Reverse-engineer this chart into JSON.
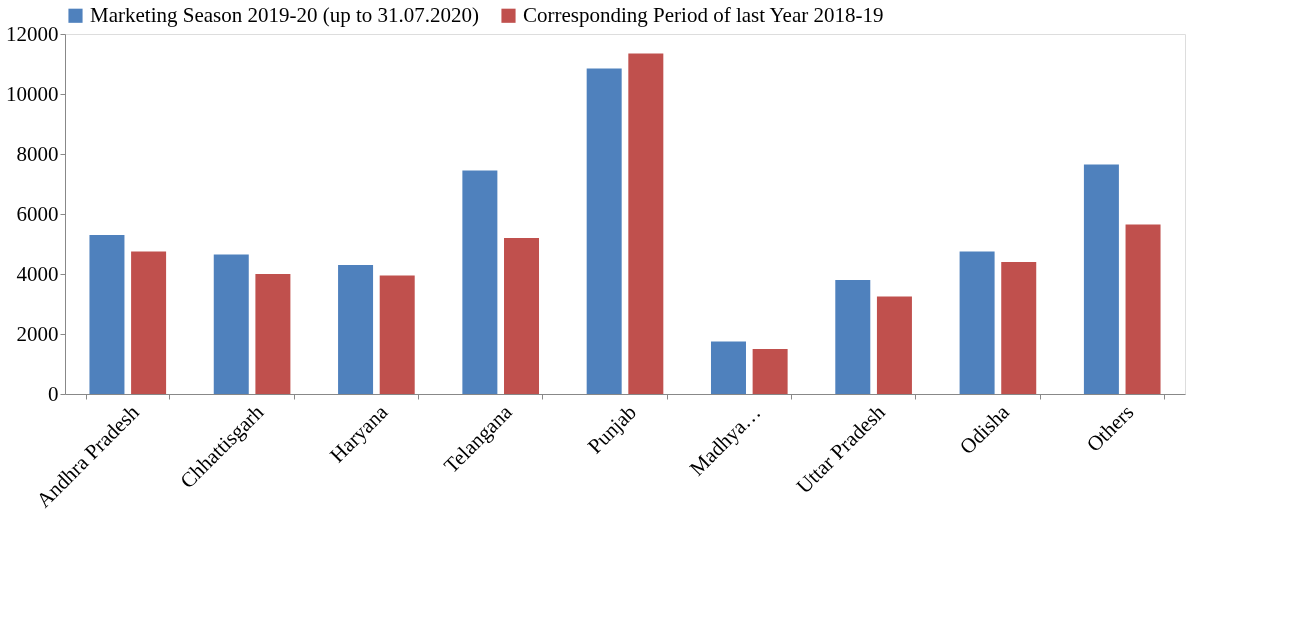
{
  "chart_data": {
    "type": "bar",
    "categories": [
      "Andhra Pradesh",
      "Chhattisgarh",
      "Haryana",
      "Telangana",
      "Punjab",
      "Madhya…",
      "Uttar Pradesh",
      "Odisha",
      "Others"
    ],
    "series": [
      {
        "name": "Marketing Season 2019-20 (up to 31.07.2020)",
        "color": "#4f81bd",
        "values": [
          5300,
          4650,
          4300,
          7450,
          10850,
          1750,
          3800,
          4750,
          7650
        ]
      },
      {
        "name": "Corresponding Period of last Year 2018-19",
        "color": "#c0504d",
        "values": [
          4750,
          4000,
          3950,
          5200,
          11350,
          1500,
          3250,
          4400,
          5650
        ]
      }
    ],
    "ylim": [
      0,
      12000
    ],
    "yticks": [
      0,
      2000,
      4000,
      6000,
      8000,
      10000,
      12000
    ],
    "grid": false,
    "legend": "top"
  }
}
